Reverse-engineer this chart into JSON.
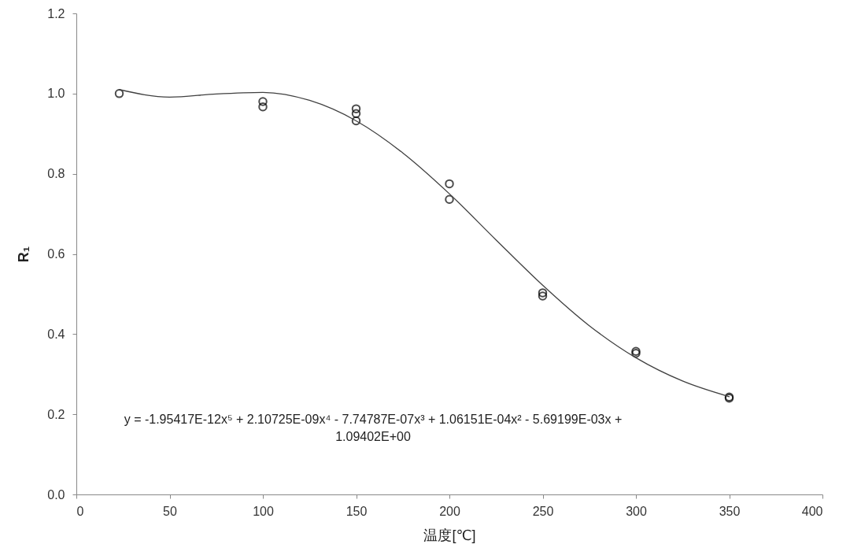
{
  "chart_data": {
    "type": "scatter",
    "xlabel": "温度[℃]",
    "ylabel": "R₁",
    "xlim": [
      0,
      400
    ],
    "xticks": [
      0,
      50,
      100,
      150,
      200,
      250,
      300,
      350,
      400
    ],
    "ylim": [
      0,
      1.2
    ],
    "yticks": [
      {
        "value": 0,
        "label": "0.0"
      },
      0.2,
      0.4,
      0.6,
      0.8,
      {
        "value": 1,
        "label": "1.0"
      },
      1.2
    ],
    "series": [
      {
        "type": "scatter",
        "marker": "circle",
        "color": "#000000",
        "x": [
          23,
          100,
          100,
          150,
          150,
          150,
          200,
          200,
          250,
          250,
          300,
          300,
          350,
          350
        ],
        "values": [
          1.0,
          0.98,
          0.967,
          0.962,
          0.95,
          0.932,
          0.775,
          0.736,
          0.503,
          0.495,
          0.357,
          0.352,
          0.243,
          0.24
        ]
      },
      {
        "type": "line",
        "marker": "none",
        "color": "#404040",
        "line_style": "solid",
        "x": [
          23,
          50,
          75,
          100,
          125,
          150,
          175,
          200,
          225,
          250,
          275,
          300,
          325,
          350
        ],
        "values": [
          1.01,
          0.991,
          0.999,
          1.003,
          0.983,
          0.932,
          0.852,
          0.75,
          0.635,
          0.522,
          0.421,
          0.341,
          0.283,
          0.244
        ]
      }
    ],
    "annotations": [
      "y = -1.95417E-12x⁵ + 2.10725E-09x⁴ - 7.74787E-07x³ + 1.06151E-04x² - 5.69199E-03x + 1.09402E+00"
    ]
  }
}
